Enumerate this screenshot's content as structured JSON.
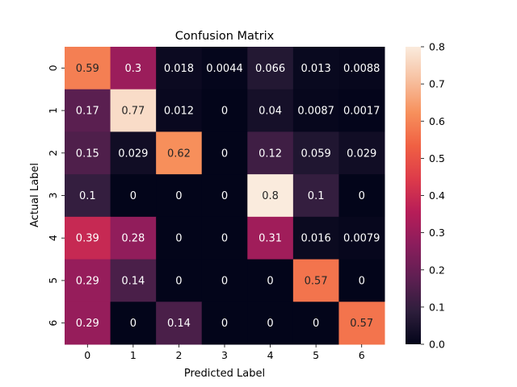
{
  "chart_data": {
    "type": "heatmap",
    "title": "Confusion Matrix",
    "xlabel": "Predicted Label",
    "ylabel": "Actual Label",
    "x_categories": [
      "0",
      "1",
      "2",
      "3",
      "4",
      "5",
      "6"
    ],
    "y_categories": [
      "0",
      "1",
      "2",
      "3",
      "4",
      "5",
      "6"
    ],
    "values": [
      [
        0.59,
        0.3,
        0.018,
        0.0044,
        0.066,
        0.013,
        0.0088
      ],
      [
        0.17,
        0.77,
        0.012,
        0,
        0.04,
        0.0087,
        0.0017
      ],
      [
        0.15,
        0.029,
        0.62,
        0,
        0.12,
        0.059,
        0.029
      ],
      [
        0.1,
        0,
        0,
        0,
        0.8,
        0.1,
        0
      ],
      [
        0.39,
        0.28,
        0,
        0,
        0.31,
        0.016,
        0.0079
      ],
      [
        0.29,
        0.14,
        0,
        0,
        0,
        0.57,
        0
      ],
      [
        0.29,
        0,
        0.14,
        0,
        0,
        0,
        0.57
      ]
    ],
    "colorbar": {
      "range": [
        0.0,
        0.8
      ],
      "ticks": [
        "0.0",
        "0.1",
        "0.2",
        "0.3",
        "0.4",
        "0.5",
        "0.6",
        "0.7",
        "0.8"
      ],
      "colormap": "rocket"
    },
    "grid": false,
    "annotated": true
  },
  "colormap_stops": [
    "#03051a",
    "#2e1e3c",
    "#5e1f52",
    "#8a1d5c",
    "#b71d58",
    "#dd3b4a",
    "#f06043",
    "#f7905c",
    "#f7c0a0",
    "#faebdd"
  ]
}
